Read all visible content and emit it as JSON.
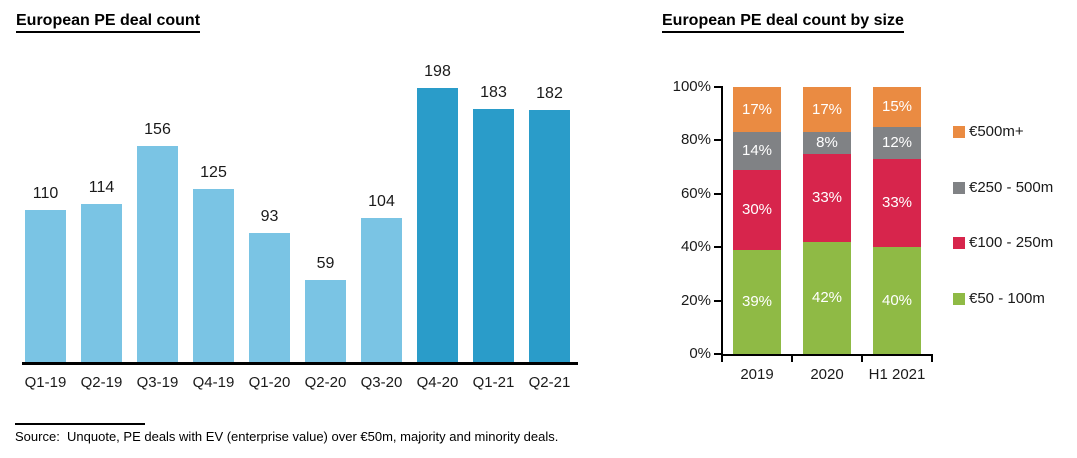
{
  "left_chart": {
    "title": "European PE deal count"
  },
  "right_chart": {
    "title": "European PE deal count by size"
  },
  "source_note": "Source:  Unquote, PE deals with EV (enterprise value) over €50m, majority and minority deals.",
  "chart_data": [
    {
      "type": "bar",
      "title": "European PE deal count",
      "categories": [
        "Q1-19",
        "Q2-19",
        "Q3-19",
        "Q4-19",
        "Q1-20",
        "Q2-20",
        "Q3-20",
        "Q4-20",
        "Q1-21",
        "Q2-21"
      ],
      "values": [
        110,
        114,
        156,
        125,
        93,
        59,
        104,
        198,
        183,
        182
      ],
      "bar_colors": [
        "#7AC4E4",
        "#7AC4E4",
        "#7AC4E4",
        "#7AC4E4",
        "#7AC4E4",
        "#7AC4E4",
        "#7AC4E4",
        "#2A9CC9",
        "#2A9CC9",
        "#2A9CC9"
      ],
      "data_labels": "values above bars",
      "xlabel": "",
      "ylabel": "",
      "ylim": [
        0,
        210
      ],
      "grid": false,
      "legend": "none",
      "axis_color": "#000000"
    },
    {
      "type": "bar",
      "subtype": "stacked-100-percent",
      "title": "European PE deal count by size",
      "categories": [
        "2019",
        "2020",
        "H1 2021"
      ],
      "series": [
        {
          "name": "€50 - 100m",
          "color": "#8FBA45",
          "values": [
            39,
            42,
            40
          ]
        },
        {
          "name": "€100 - 250m",
          "color": "#D7254C",
          "values": [
            30,
            33,
            33
          ]
        },
        {
          "name": "€250 - 500m",
          "color": "#808285",
          "values": [
            14,
            8,
            12
          ]
        },
        {
          "name": "€500m+",
          "color": "#EA8B42",
          "values": [
            17,
            17,
            15
          ]
        }
      ],
      "y_ticks": [
        "0%",
        "20%",
        "40%",
        "60%",
        "80%",
        "100%"
      ],
      "ylim": [
        0,
        100
      ],
      "grid": false,
      "legend_position": "right",
      "legend_order_top_to_bottom": [
        "€500m+",
        "€250 - 500m",
        "€100 - 250m",
        "€50 - 100m"
      ],
      "data_labels": "white percent labels inside segments",
      "axis_color": "#000000"
    }
  ]
}
